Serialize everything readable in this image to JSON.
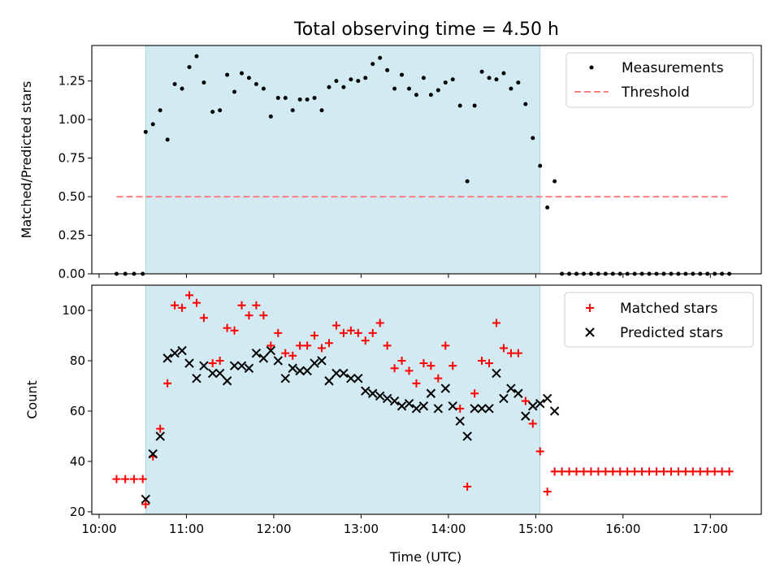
{
  "chart_data": [
    {
      "type": "scatter",
      "title": "Total observing time = 4.50 h",
      "xlabel": "",
      "ylabel": "Matched/Predicted stars",
      "ylim": [
        0,
        1.48
      ],
      "yticks": [
        "0.00",
        "0.25",
        "0.50",
        "0.75",
        "1.00",
        "1.25"
      ],
      "ytick_values": [
        0,
        0.25,
        0.5,
        0.75,
        1.0,
        1.25
      ],
      "legend_position": "top-right",
      "shaded_x": [
        "10:32",
        "15:03"
      ],
      "shade_color": "#add8e6",
      "threshold": {
        "name": "Threshold",
        "value": 0.5,
        "x_start": "10:12",
        "x_end": "17:12",
        "color": "#ff8080",
        "style": "dashed"
      },
      "series": [
        {
          "name": "Measurements",
          "marker": "dot",
          "color": "#000000",
          "x": [
            "10:12",
            "10:18",
            "10:24",
            "10:30",
            "10:32",
            "10:37",
            "10:42",
            "10:47",
            "10:52",
            "10:57",
            "11:02",
            "11:07",
            "11:12",
            "11:18",
            "11:23",
            "11:28",
            "11:33",
            "11:38",
            "11:43",
            "11:48",
            "11:53",
            "11:58",
            "12:03",
            "12:08",
            "12:13",
            "12:18",
            "12:23",
            "12:28",
            "12:33",
            "12:38",
            "12:43",
            "12:48",
            "12:53",
            "12:58",
            "13:03",
            "13:08",
            "13:13",
            "13:18",
            "13:23",
            "13:28",
            "13:33",
            "13:38",
            "13:43",
            "13:48",
            "13:53",
            "13:58",
            "14:03",
            "14:08",
            "14:13",
            "14:18",
            "14:23",
            "14:28",
            "14:33",
            "14:38",
            "14:43",
            "14:48",
            "14:53",
            "14:58",
            "15:03",
            "15:08",
            "15:13",
            "15:18",
            "15:23",
            "15:28",
            "15:33",
            "15:38",
            "15:43",
            "15:48",
            "15:53",
            "15:58",
            "16:03",
            "16:08",
            "16:13",
            "16:18",
            "16:23",
            "16:28",
            "16:33",
            "16:38",
            "16:43",
            "16:48",
            "16:53",
            "16:58",
            "17:03",
            "17:08",
            "17:13"
          ],
          "y": [
            0.0,
            0.0,
            0.0,
            0.0,
            0.92,
            0.97,
            1.06,
            0.87,
            1.23,
            1.2,
            1.34,
            1.41,
            1.24,
            1.05,
            1.06,
            1.29,
            1.18,
            1.3,
            1.27,
            1.23,
            1.2,
            1.02,
            1.14,
            1.14,
            1.06,
            1.13,
            1.13,
            1.14,
            1.06,
            1.21,
            1.25,
            1.21,
            1.26,
            1.25,
            1.27,
            1.36,
            1.4,
            1.32,
            1.2,
            1.29,
            1.2,
            1.16,
            1.27,
            1.16,
            1.19,
            1.24,
            1.26,
            1.09,
            0.6,
            1.09,
            1.31,
            1.27,
            1.26,
            1.3,
            1.2,
            1.24,
            1.1,
            0.88,
            0.7,
            0.43,
            0.6,
            0.0,
            0.0,
            0.0,
            0.0,
            0.0,
            0.0,
            0.0,
            0.0,
            0.0,
            0.0,
            0.0,
            0.0,
            0.0,
            0.0,
            0.0,
            0.0,
            0.0,
            0.0,
            0.0,
            0.0,
            0.0,
            0.0,
            0.0,
            0.0
          ]
        }
      ]
    },
    {
      "type": "scatter",
      "title": "",
      "xlabel": "Time (UTC)",
      "ylabel": "Count",
      "ylim": [
        19,
        110
      ],
      "xlim": [
        "09:55",
        "17:35"
      ],
      "yticks": [
        "20",
        "40",
        "60",
        "80",
        "100"
      ],
      "ytick_values": [
        20,
        40,
        60,
        80,
        100
      ],
      "xticks": [
        "10:00",
        "11:00",
        "12:00",
        "13:00",
        "14:00",
        "15:00",
        "16:00",
        "17:00"
      ],
      "legend_position": "top-right",
      "shaded_x": [
        "10:32",
        "15:03"
      ],
      "series": [
        {
          "name": "Matched stars",
          "marker": "plus",
          "color": "#ff0000",
          "x": [
            "10:12",
            "10:18",
            "10:24",
            "10:30",
            "10:32",
            "10:37",
            "10:42",
            "10:47",
            "10:52",
            "10:57",
            "11:02",
            "11:07",
            "11:12",
            "11:18",
            "11:23",
            "11:28",
            "11:33",
            "11:38",
            "11:43",
            "11:48",
            "11:53",
            "11:58",
            "12:03",
            "12:08",
            "12:13",
            "12:18",
            "12:23",
            "12:28",
            "12:33",
            "12:38",
            "12:43",
            "12:48",
            "12:53",
            "12:58",
            "13:03",
            "13:08",
            "13:13",
            "13:18",
            "13:23",
            "13:28",
            "13:33",
            "13:38",
            "13:43",
            "13:48",
            "13:53",
            "13:58",
            "14:03",
            "14:08",
            "14:13",
            "14:18",
            "14:23",
            "14:28",
            "14:33",
            "14:38",
            "14:43",
            "14:48",
            "14:53",
            "14:58",
            "15:03",
            "15:08",
            "15:13",
            "15:18",
            "15:23",
            "15:28",
            "15:33",
            "15:38",
            "15:43",
            "15:48",
            "15:53",
            "15:58",
            "16:03",
            "16:08",
            "16:13",
            "16:18",
            "16:23",
            "16:28",
            "16:33",
            "16:38",
            "16:43",
            "16:48",
            "16:53",
            "16:58",
            "17:03",
            "17:08",
            "17:13"
          ],
          "y": [
            33,
            33,
            33,
            33,
            23,
            42,
            53,
            71,
            102,
            101,
            106,
            103,
            97,
            79,
            80,
            93,
            92,
            102,
            98,
            102,
            98,
            86,
            91,
            83,
            82,
            86,
            86,
            90,
            85,
            87,
            94,
            91,
            92,
            91,
            88,
            91,
            95,
            86,
            77,
            80,
            76,
            71,
            79,
            78,
            73,
            86,
            78,
            61,
            30,
            67,
            80,
            79,
            95,
            85,
            83,
            83,
            64,
            55,
            44,
            28,
            36,
            36,
            36,
            36,
            36,
            36,
            36,
            36,
            36,
            36,
            36,
            36,
            36,
            36,
            36,
            36,
            36,
            36,
            36,
            36,
            36,
            36,
            36,
            36,
            36
          ]
        },
        {
          "name": "Predicted stars",
          "marker": "x",
          "color": "#000000",
          "x": [
            "10:32",
            "10:37",
            "10:42",
            "10:47",
            "10:52",
            "10:57",
            "11:02",
            "11:07",
            "11:12",
            "11:18",
            "11:23",
            "11:28",
            "11:33",
            "11:38",
            "11:43",
            "11:48",
            "11:53",
            "11:58",
            "12:03",
            "12:08",
            "12:13",
            "12:18",
            "12:23",
            "12:28",
            "12:33",
            "12:38",
            "12:43",
            "12:48",
            "12:53",
            "12:58",
            "13:03",
            "13:08",
            "13:13",
            "13:18",
            "13:23",
            "13:28",
            "13:33",
            "13:38",
            "13:43",
            "13:48",
            "13:53",
            "13:58",
            "14:03",
            "14:08",
            "14:13",
            "14:18",
            "14:23",
            "14:28",
            "14:33",
            "14:38",
            "14:43",
            "14:48",
            "14:53",
            "14:58",
            "15:03",
            "15:08",
            "15:13"
          ],
          "y": [
            25,
            43,
            50,
            81,
            83,
            84,
            79,
            73,
            78,
            75,
            75,
            72,
            78,
            78,
            77,
            83,
            81,
            84,
            80,
            73,
            77,
            76,
            76,
            79,
            80,
            72,
            75,
            75,
            73,
            73,
            68,
            67,
            66,
            65,
            64,
            62,
            63,
            61,
            62,
            67,
            61,
            69,
            62,
            56,
            50,
            61,
            61,
            61,
            75,
            65,
            69,
            67,
            58,
            62,
            63,
            65,
            60
          ]
        }
      ]
    }
  ]
}
